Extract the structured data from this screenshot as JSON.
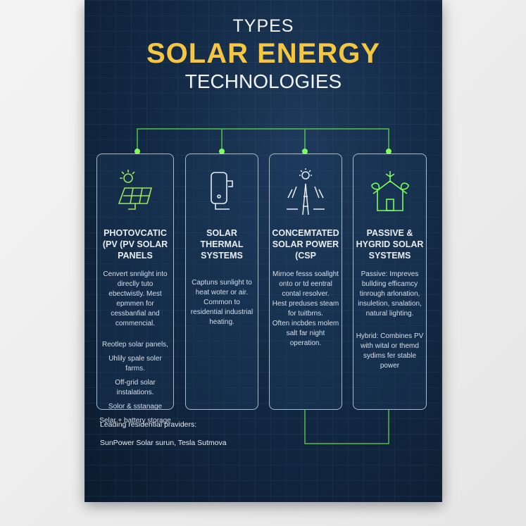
{
  "title": {
    "line1": "TYPES",
    "line2": "SOLAR ENERGY",
    "line3": "TECHNOLOGIES"
  },
  "colors": {
    "accent_yellow": "#f5c642",
    "connector_green": "#5fdc4a",
    "background": "#132a45"
  },
  "cards": [
    {
      "icon": "solar-panel-icon",
      "title": "PHOTOVCATIC (PV (PV SOLAR PANELS",
      "paragraphs": [
        "Cenvert snnlight into direclly tuto ebectwistly. Mest epmmen for cessbanfial and commencial."
      ],
      "items": [
        "Reotlep solar panels,",
        "Uhlily spale soler farms.",
        "Off-grid solar instalations.",
        "Solor & sstanage",
        "Selar + battery storage"
      ]
    },
    {
      "icon": "water-heater-icon",
      "title": "SOLAR THERMAL SYSTEMS",
      "paragraphs": [
        "Captuns sunlight to heat woter or air.",
        "Common to residential industrial heating."
      ],
      "items": []
    },
    {
      "icon": "solar-tower-icon",
      "title": "CONCEMTATED SOLAR POWER (CSP",
      "paragraphs": [
        "Mirnoe fesss soallght onto or td eentral contal resolver.",
        "Hest preduses steam for tuitbrns.",
        "Often incbdes molem salt far night operation."
      ],
      "items": []
    },
    {
      "icon": "eco-house-icon",
      "title": "PASSIVE & HYGRID SOLAR SYSTEMS",
      "paragraphs": [
        "Passive: Impreves bullding efficamcy tinrough arlonation, insuletion, snalation, natural lighting.",
        "Hybrid: Combines PV with wital or themd sydims fer stable power"
      ],
      "items": []
    }
  ],
  "footer": {
    "label": "Leading residential praviders:",
    "providers": "SunPower Solar  surun, Tesla  Sutmova"
  }
}
